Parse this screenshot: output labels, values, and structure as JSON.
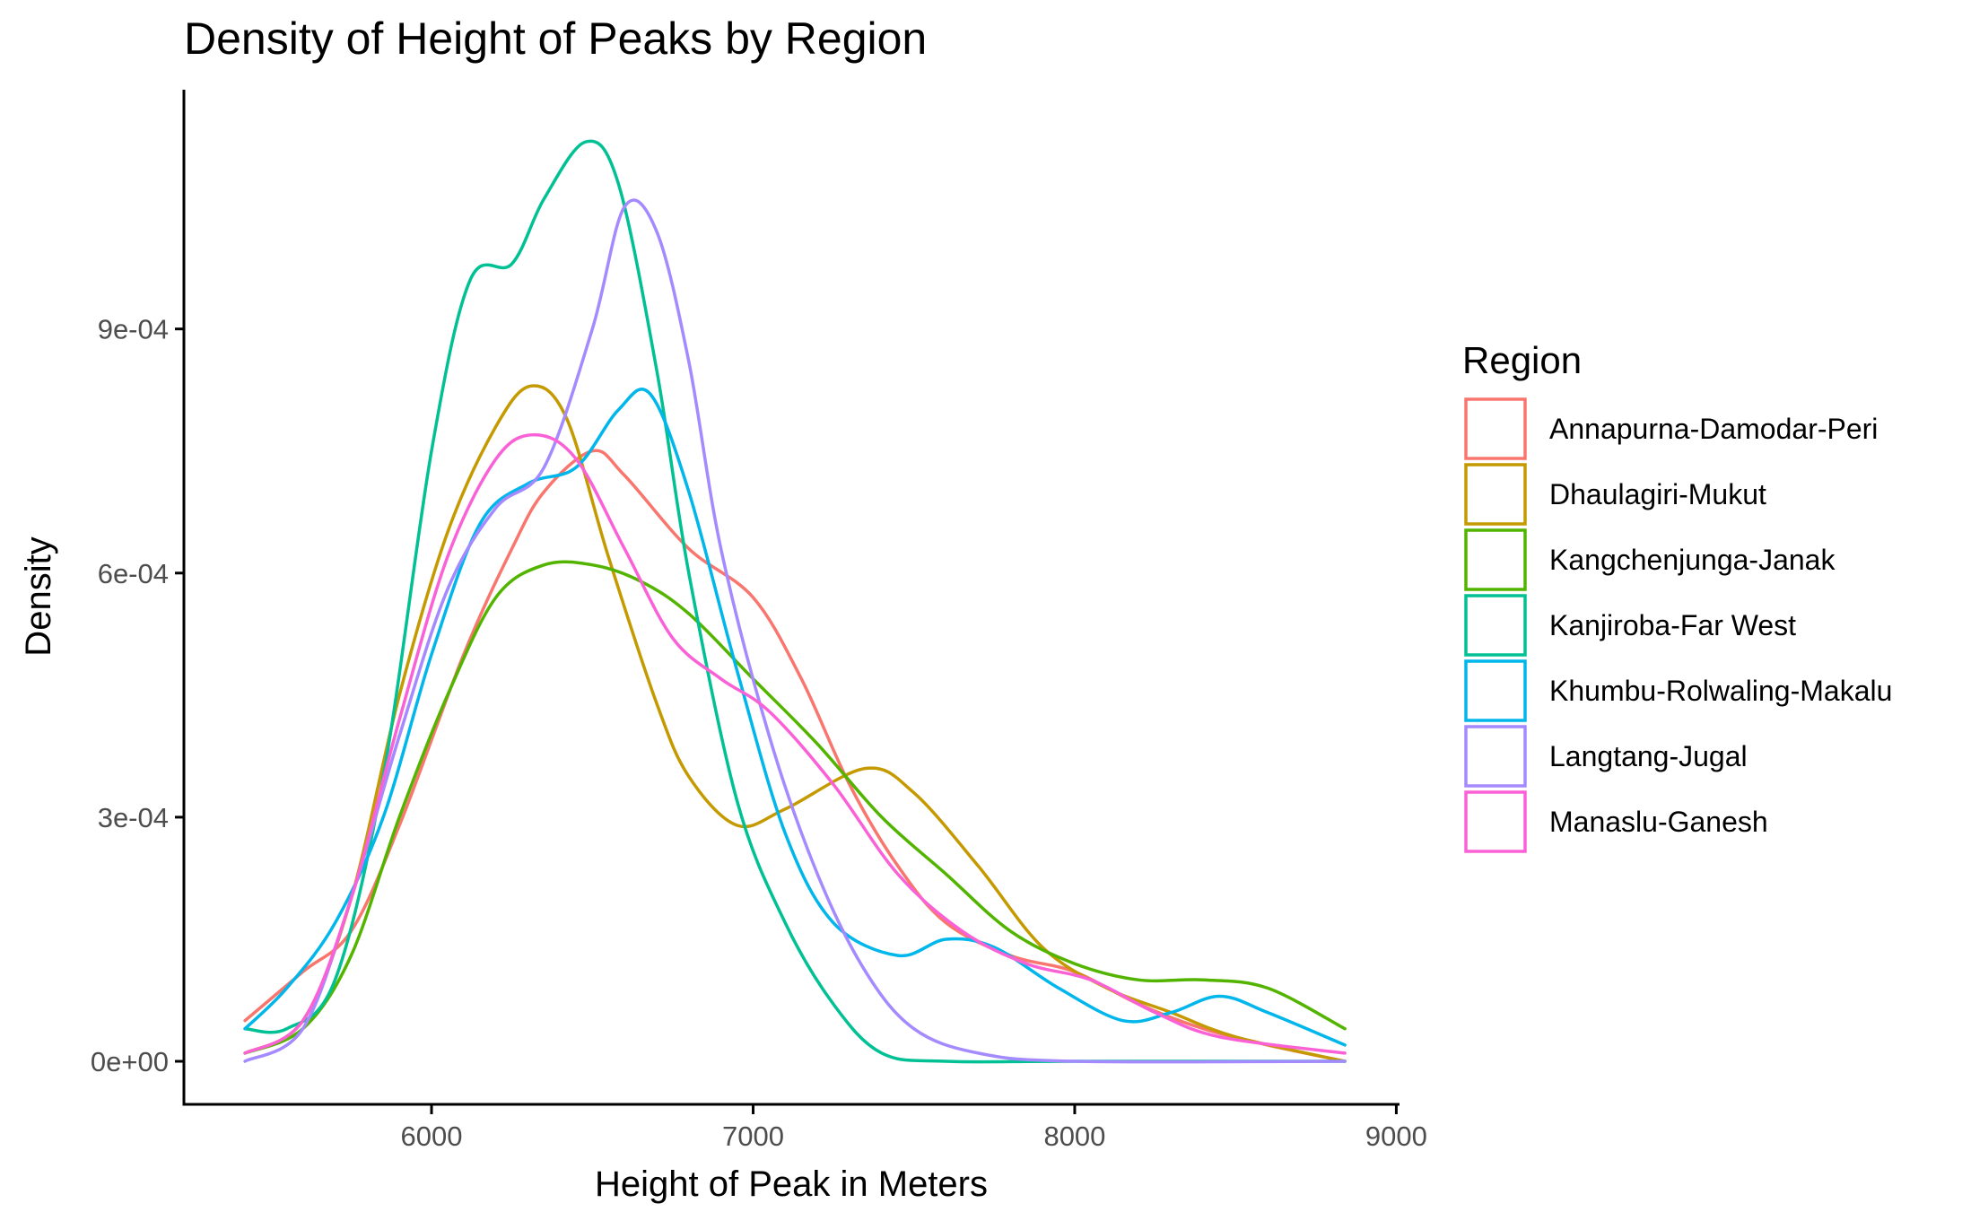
{
  "chart_data": {
    "type": "line",
    "title": "Density of Height of Peaks by Region",
    "xlabel": "Height of Peak in Meters",
    "ylabel": "Density",
    "xlim": [
      5230,
      9010
    ],
    "ylim": [
      -5.4e-05,
      0.001194
    ],
    "x_ticks": [
      6000,
      7000,
      8000,
      9000
    ],
    "x_tick_labels": [
      "6000",
      "7000",
      "8000",
      "9000"
    ],
    "y_ticks": [
      0,
      0.0003,
      0.0006,
      0.0009
    ],
    "y_tick_labels": [
      "0e+00",
      "3e-04",
      "6e-04",
      "9e-04"
    ],
    "grid": false,
    "legend": {
      "title": "Region",
      "position": "right"
    },
    "series": [
      {
        "name": "Annapurna-Damodar-Peri",
        "color": "#F8766D",
        "points": [
          [
            5420,
            5e-05
          ],
          [
            5600,
            0.00011
          ],
          [
            5750,
            0.00016
          ],
          [
            5900,
            0.00029
          ],
          [
            6100,
            0.0005
          ],
          [
            6250,
            0.00063
          ],
          [
            6350,
            0.0007
          ],
          [
            6500,
            0.00075
          ],
          [
            6600,
            0.00072
          ],
          [
            6800,
            0.00063
          ],
          [
            7000,
            0.00057
          ],
          [
            7150,
            0.00047
          ],
          [
            7300,
            0.00034
          ],
          [
            7450,
            0.00024
          ],
          [
            7600,
            0.00017
          ],
          [
            7800,
            0.00013
          ],
          [
            8000,
            0.00011
          ],
          [
            8200,
            7e-05
          ],
          [
            8400,
            4e-05
          ],
          [
            8600,
            2e-05
          ],
          [
            8840,
            0.0
          ]
        ]
      },
      {
        "name": "Dhaulagiri-Mukut",
        "color": "#C49A00",
        "points": [
          [
            5420,
            1e-05
          ],
          [
            5600,
            5e-05
          ],
          [
            5750,
            0.0002
          ],
          [
            5900,
            0.00045
          ],
          [
            6050,
            0.00065
          ],
          [
            6200,
            0.00078
          ],
          [
            6310,
            0.00083
          ],
          [
            6420,
            0.00079
          ],
          [
            6550,
            0.00062
          ],
          [
            6700,
            0.00044
          ],
          [
            6800,
            0.00035
          ],
          [
            6950,
            0.00029
          ],
          [
            7100,
            0.00031
          ],
          [
            7350,
            0.00036
          ],
          [
            7500,
            0.00033
          ],
          [
            7700,
            0.00024
          ],
          [
            7900,
            0.00014
          ],
          [
            8100,
            9e-05
          ],
          [
            8300,
            6e-05
          ],
          [
            8500,
            3e-05
          ],
          [
            8840,
            0.0
          ]
        ]
      },
      {
        "name": "Kangchenjunga-Janak",
        "color": "#53B400",
        "points": [
          [
            5420,
            1e-05
          ],
          [
            5600,
            4e-05
          ],
          [
            5750,
            0.00013
          ],
          [
            5900,
            0.0003
          ],
          [
            6050,
            0.00045
          ],
          [
            6200,
            0.00057
          ],
          [
            6350,
            0.00061
          ],
          [
            6500,
            0.00061
          ],
          [
            6650,
            0.00059
          ],
          [
            6800,
            0.00055
          ],
          [
            7000,
            0.00047
          ],
          [
            7200,
            0.00039
          ],
          [
            7400,
            0.0003
          ],
          [
            7600,
            0.00023
          ],
          [
            7800,
            0.00016
          ],
          [
            8000,
            0.00012
          ],
          [
            8200,
            0.0001
          ],
          [
            8400,
            0.0001
          ],
          [
            8600,
            9e-05
          ],
          [
            8840,
            4e-05
          ]
        ]
      },
      {
        "name": "Kanjiroba-Far West",
        "color": "#00C094",
        "points": [
          [
            5420,
            4e-05
          ],
          [
            5550,
            4e-05
          ],
          [
            5700,
            0.0001
          ],
          [
            5850,
            0.00035
          ],
          [
            6000,
            0.00075
          ],
          [
            6120,
            0.00096
          ],
          [
            6250,
            0.00098
          ],
          [
            6350,
            0.00106
          ],
          [
            6480,
            0.00113
          ],
          [
            6580,
            0.00108
          ],
          [
            6700,
            0.00085
          ],
          [
            6800,
            0.0006
          ],
          [
            6950,
            0.00032
          ],
          [
            7100,
            0.00017
          ],
          [
            7250,
            7e-05
          ],
          [
            7400,
            1e-05
          ],
          [
            7600,
            0.0
          ],
          [
            8000,
            0.0
          ],
          [
            8840,
            0.0
          ]
        ]
      },
      {
        "name": "Khumbu-Rolwaling-Makalu",
        "color": "#00B6EB",
        "points": [
          [
            5420,
            4e-05
          ],
          [
            5550,
            9e-05
          ],
          [
            5700,
            0.00017
          ],
          [
            5850,
            0.0003
          ],
          [
            6000,
            0.0005
          ],
          [
            6150,
            0.00066
          ],
          [
            6300,
            0.00071
          ],
          [
            6450,
            0.00073
          ],
          [
            6580,
            0.0008
          ],
          [
            6680,
            0.00082
          ],
          [
            6800,
            0.0007
          ],
          [
            6950,
            0.00048
          ],
          [
            7100,
            0.00028
          ],
          [
            7250,
            0.00017
          ],
          [
            7450,
            0.00013
          ],
          [
            7600,
            0.00015
          ],
          [
            7750,
            0.00014
          ],
          [
            7950,
            9e-05
          ],
          [
            8150,
            5e-05
          ],
          [
            8300,
            6e-05
          ],
          [
            8450,
            8e-05
          ],
          [
            8600,
            6e-05
          ],
          [
            8840,
            2e-05
          ]
        ]
      },
      {
        "name": "Langtang-Jugal",
        "color": "#A58AFF",
        "points": [
          [
            5420,
            0.0
          ],
          [
            5600,
            4e-05
          ],
          [
            5750,
            0.0002
          ],
          [
            5900,
            0.0004
          ],
          [
            6050,
            0.00058
          ],
          [
            6200,
            0.00068
          ],
          [
            6350,
            0.00073
          ],
          [
            6500,
            0.0009
          ],
          [
            6600,
            0.00105
          ],
          [
            6700,
            0.00102
          ],
          [
            6800,
            0.00086
          ],
          [
            6900,
            0.00063
          ],
          [
            7050,
            0.0004
          ],
          [
            7200,
            0.00023
          ],
          [
            7350,
            0.00011
          ],
          [
            7500,
            4e-05
          ],
          [
            7700,
            1e-05
          ],
          [
            8000,
            0.0
          ],
          [
            8840,
            0.0
          ]
        ]
      },
      {
        "name": "Manaslu-Ganesh",
        "color": "#FB61D7",
        "points": [
          [
            5420,
            1e-05
          ],
          [
            5600,
            5e-05
          ],
          [
            5750,
            0.0002
          ],
          [
            5900,
            0.00042
          ],
          [
            6050,
            0.00062
          ],
          [
            6200,
            0.00074
          ],
          [
            6320,
            0.00077
          ],
          [
            6450,
            0.00074
          ],
          [
            6600,
            0.00063
          ],
          [
            6750,
            0.00052
          ],
          [
            6900,
            0.00047
          ],
          [
            7050,
            0.00043
          ],
          [
            7250,
            0.00034
          ],
          [
            7450,
            0.00023
          ],
          [
            7650,
            0.00016
          ],
          [
            7850,
            0.00012
          ],
          [
            8050,
            0.0001
          ],
          [
            8250,
            6e-05
          ],
          [
            8450,
            3e-05
          ],
          [
            8840,
            1e-05
          ]
        ]
      }
    ]
  }
}
